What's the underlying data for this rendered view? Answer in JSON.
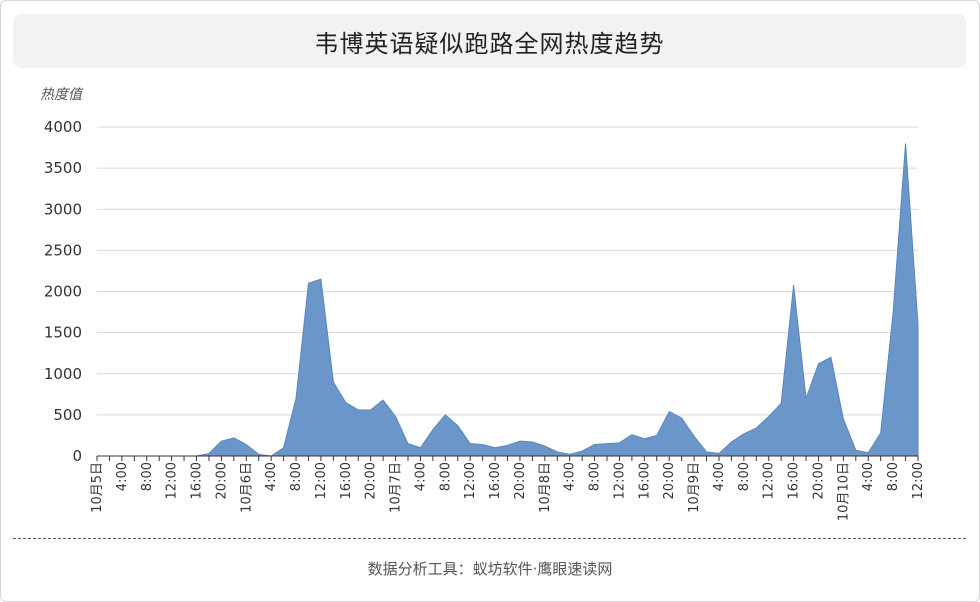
{
  "title": "韦博英语疑似跑路全网热度趋势",
  "footer": "数据分析工具：蚁坊软件·鹰眼速读网",
  "colors": {
    "fill": "#6b96c9",
    "stroke": "#5a86bd",
    "grid": "#d9d9d9",
    "axis": "#333333",
    "text": "#333333"
  },
  "chart_data": {
    "type": "area",
    "ylabel": "热度值",
    "ylim": [
      0,
      4000
    ],
    "yticks": [
      0,
      500,
      1000,
      1500,
      2000,
      2500,
      3000,
      3500,
      4000
    ],
    "grid": "horizontal",
    "x_interval_hours": 1,
    "x_tick_every": 2,
    "x_tick_labels": [
      "10月5日",
      "4:00",
      "8:00",
      "12:00",
      "16:00",
      "20:00",
      "10月6日",
      "4:00",
      "8:00",
      "12:00",
      "16:00",
      "20:00",
      "10月7日",
      "4:00",
      "8:00",
      "12:00",
      "16:00",
      "20:00",
      "10月8日",
      "4:00",
      "8:00",
      "12:00",
      "16:00",
      "20:00",
      "10月9日",
      "4:00",
      "8:00",
      "12:00",
      "16:00",
      "20:00",
      "10月10日",
      "4:00",
      "8:00",
      "12:00"
    ],
    "values": [
      0,
      0,
      0,
      0,
      0,
      0,
      0,
      0,
      0,
      30,
      180,
      220,
      140,
      20,
      0,
      100,
      700,
      2100,
      2150,
      900,
      650,
      560,
      560,
      680,
      480,
      150,
      100,
      320,
      500,
      370,
      150,
      140,
      100,
      130,
      180,
      170,
      120,
      50,
      20,
      60,
      140,
      150,
      160,
      260,
      210,
      250,
      540,
      460,
      240,
      50,
      30,
      170,
      270,
      340,
      480,
      640,
      2080,
      700,
      1120,
      1200,
      450,
      70,
      40,
      280,
      1750,
      3800,
      1600
    ]
  }
}
